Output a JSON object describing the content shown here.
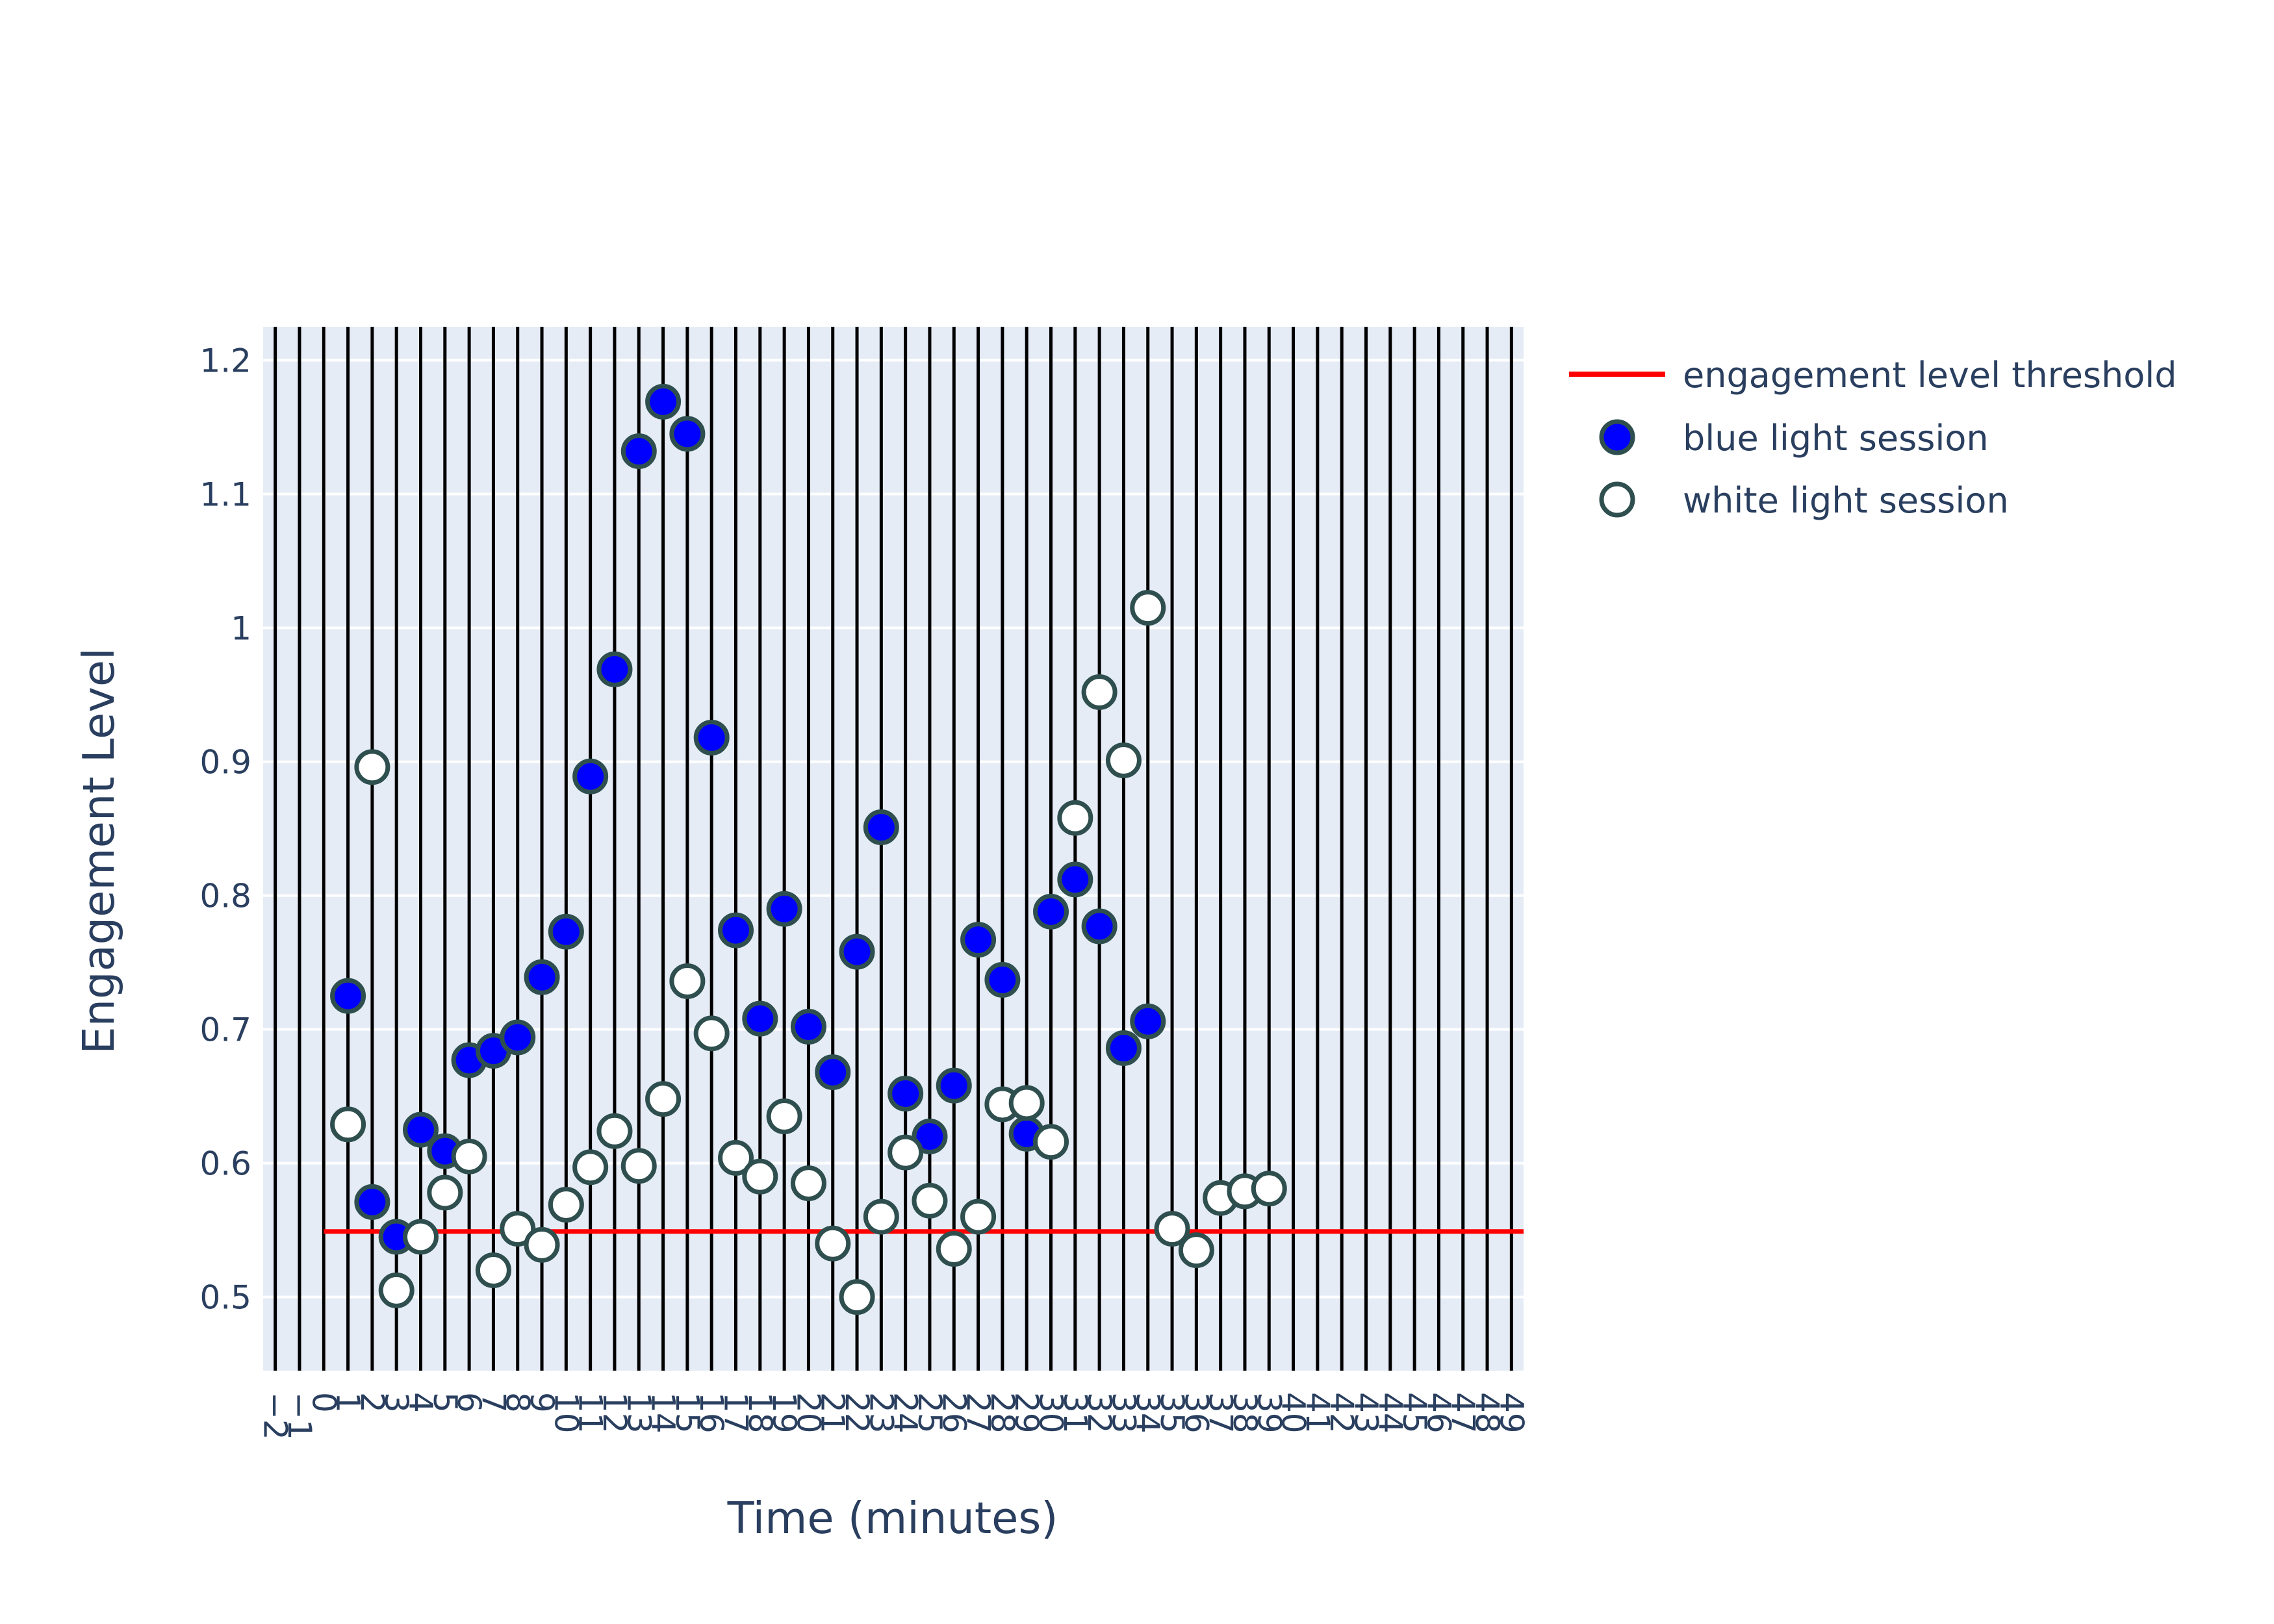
{
  "colors": {
    "plot_bg": "#e5ecf6",
    "grid": "#ffffff",
    "vline": "#000000",
    "threshold": "#ff0000",
    "blue_fill": "#0000ff",
    "white_fill": "#ffffff",
    "marker_outline": "#2f4f4f",
    "text": "#2a3f5f"
  },
  "chart_data": {
    "type": "scatter",
    "title": "",
    "xlabel": "Time (minutes)",
    "ylabel": "Engagement Level",
    "xlim": [
      -2.5,
      49.5
    ],
    "ylim": [
      0.445,
      1.225
    ],
    "x_ticks": [
      -2,
      -1,
      0,
      1,
      2,
      3,
      4,
      5,
      6,
      7,
      8,
      9,
      10,
      11,
      12,
      13,
      14,
      15,
      16,
      17,
      18,
      19,
      20,
      21,
      22,
      23,
      24,
      25,
      26,
      27,
      28,
      29,
      30,
      31,
      32,
      33,
      34,
      35,
      36,
      37,
      38,
      39,
      40,
      41,
      42,
      43,
      44,
      45,
      46,
      47,
      48,
      49
    ],
    "y_ticks": [
      0.5,
      0.6,
      0.7,
      0.8,
      0.9,
      1.0,
      1.1,
      1.2
    ],
    "y_tick_labels": [
      "0.5",
      "0.6",
      "0.7",
      "0.8",
      "0.9",
      "1",
      "1.1",
      "1.2"
    ],
    "vertical_lines_at_ticks": true,
    "grid": true,
    "legend_position": "top-right (outside plot)",
    "legend": [
      "engagement level threshold",
      "blue light session",
      "white light session"
    ],
    "threshold": {
      "name": "engagement level threshold",
      "y": 0.549,
      "x_range": [
        0,
        49.5
      ]
    },
    "series": [
      {
        "name": "blue light session",
        "x": [
          1,
          2,
          3,
          4,
          5,
          6,
          7,
          8,
          9,
          10,
          11,
          12,
          13,
          14,
          15,
          16,
          17,
          18,
          19,
          20,
          21,
          22,
          23,
          24,
          25,
          26,
          27,
          28,
          29,
          30,
          31,
          32,
          33,
          34
        ],
        "y": [
          0.725,
          0.571,
          0.545,
          0.625,
          0.609,
          0.677,
          0.684,
          0.694,
          0.739,
          0.773,
          0.889,
          0.969,
          1.132,
          1.169,
          1.145,
          0.918,
          0.774,
          0.708,
          0.79,
          0.702,
          0.668,
          0.758,
          0.851,
          0.652,
          0.62,
          0.658,
          0.767,
          0.737,
          0.622,
          0.788,
          0.812,
          0.777,
          0.686,
          0.706
        ]
      },
      {
        "name": "white light session",
        "x": [
          1,
          2,
          3,
          4,
          5,
          6,
          7,
          8,
          9,
          10,
          11,
          12,
          13,
          14,
          15,
          16,
          17,
          18,
          19,
          20,
          21,
          22,
          23,
          24,
          25,
          26,
          27,
          28,
          29,
          30,
          31,
          32,
          33,
          34,
          35,
          36,
          37,
          38,
          39
        ],
        "y": [
          0.629,
          0.896,
          0.505,
          0.545,
          0.578,
          0.605,
          0.52,
          0.551,
          0.539,
          0.569,
          0.597,
          0.624,
          0.598,
          0.648,
          0.736,
          0.697,
          0.604,
          0.59,
          0.635,
          0.585,
          0.54,
          0.5,
          0.56,
          0.608,
          0.572,
          0.536,
          0.56,
          0.644,
          0.645,
          0.616,
          0.858,
          0.952,
          0.901,
          1.015,
          0.551,
          0.535,
          0.574,
          0.579,
          0.581
        ]
      }
    ]
  }
}
